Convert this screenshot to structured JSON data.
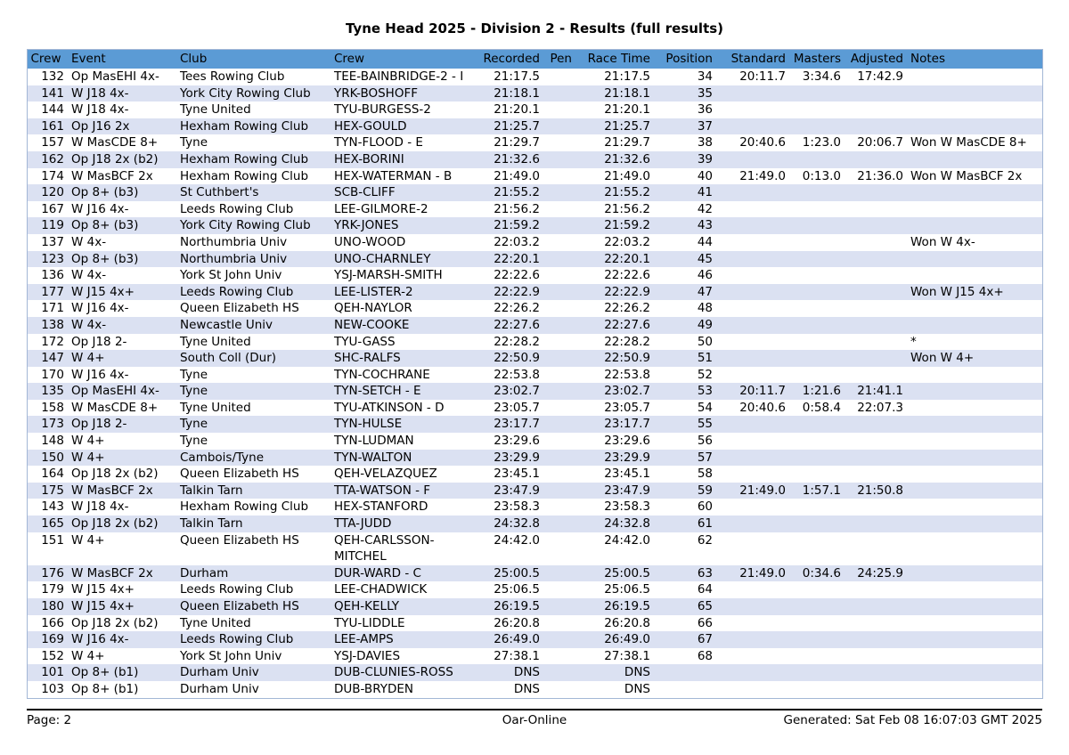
{
  "title": "Tyne Head 2025 - Division 2 - Results (full results)",
  "colors": {
    "header_bg": "#5b9bd5",
    "row_alt_bg": "#dbe1f2",
    "table_border": "#a3b7d6",
    "text": "#000000"
  },
  "table": {
    "columns": [
      {
        "key": "num",
        "label": "Crew"
      },
      {
        "key": "event",
        "label": "Event"
      },
      {
        "key": "club",
        "label": "Club"
      },
      {
        "key": "crew",
        "label": "Crew"
      },
      {
        "key": "recorded",
        "label": "Recorded"
      },
      {
        "key": "pen",
        "label": "Pen"
      },
      {
        "key": "race",
        "label": "Race Time"
      },
      {
        "key": "pos",
        "label": "Position"
      },
      {
        "key": "standard",
        "label": "Standard"
      },
      {
        "key": "masters",
        "label": "Masters"
      },
      {
        "key": "adjusted",
        "label": "Adjusted"
      },
      {
        "key": "notes",
        "label": "Notes"
      }
    ],
    "rows": [
      [
        "132",
        "Op MasEHI 4x-",
        "Tees Rowing Club",
        "TEE-BAINBRIDGE-2 - I",
        "21:17.5",
        "",
        "21:17.5",
        "34",
        "20:11.7",
        "3:34.6",
        "17:42.9",
        ""
      ],
      [
        "141",
        "W J18 4x-",
        "York City Rowing Club",
        "YRK-BOSHOFF",
        "21:18.1",
        "",
        "21:18.1",
        "35",
        "",
        "",
        "",
        ""
      ],
      [
        "144",
        "W J18 4x-",
        "Tyne United",
        "TYU-BURGESS-2",
        "21:20.1",
        "",
        "21:20.1",
        "36",
        "",
        "",
        "",
        ""
      ],
      [
        "161",
        "Op J16 2x",
        "Hexham Rowing Club",
        "HEX-GOULD",
        "21:25.7",
        "",
        "21:25.7",
        "37",
        "",
        "",
        "",
        ""
      ],
      [
        "157",
        "W MasCDE 8+",
        "Tyne",
        "TYN-FLOOD - E",
        "21:29.7",
        "",
        "21:29.7",
        "38",
        "20:40.6",
        "1:23.0",
        "20:06.7",
        "Won W MasCDE 8+"
      ],
      [
        "162",
        "Op J18 2x (b2)",
        "Hexham Rowing Club",
        "HEX-BORINI",
        "21:32.6",
        "",
        "21:32.6",
        "39",
        "",
        "",
        "",
        ""
      ],
      [
        "174",
        "W MasBCF 2x",
        "Hexham Rowing Club",
        "HEX-WATERMAN - B",
        "21:49.0",
        "",
        "21:49.0",
        "40",
        "21:49.0",
        "0:13.0",
        "21:36.0",
        "Won W MasBCF 2x"
      ],
      [
        "120",
        "Op 8+ (b3)",
        "St Cuthbert's",
        "SCB-CLIFF",
        "21:55.2",
        "",
        "21:55.2",
        "41",
        "",
        "",
        "",
        ""
      ],
      [
        "167",
        "W J16 4x-",
        "Leeds Rowing Club",
        "LEE-GILMORE-2",
        "21:56.2",
        "",
        "21:56.2",
        "42",
        "",
        "",
        "",
        ""
      ],
      [
        "119",
        "Op 8+ (b3)",
        "York City Rowing Club",
        "YRK-JONES",
        "21:59.2",
        "",
        "21:59.2",
        "43",
        "",
        "",
        "",
        ""
      ],
      [
        "137",
        "W 4x-",
        "Northumbria Univ",
        "UNO-WOOD",
        "22:03.2",
        "",
        "22:03.2",
        "44",
        "",
        "",
        "",
        "Won W 4x-"
      ],
      [
        "123",
        "Op 8+ (b3)",
        "Northumbria Univ",
        "UNO-CHARNLEY",
        "22:20.1",
        "",
        "22:20.1",
        "45",
        "",
        "",
        "",
        ""
      ],
      [
        "136",
        "W 4x-",
        "York St John Univ",
        "YSJ-MARSH-SMITH",
        "22:22.6",
        "",
        "22:22.6",
        "46",
        "",
        "",
        "",
        ""
      ],
      [
        "177",
        "W J15 4x+",
        "Leeds Rowing Club",
        "LEE-LISTER-2",
        "22:22.9",
        "",
        "22:22.9",
        "47",
        "",
        "",
        "",
        "Won W J15 4x+"
      ],
      [
        "171",
        "W J16 4x-",
        "Queen Elizabeth HS",
        "QEH-NAYLOR",
        "22:26.2",
        "",
        "22:26.2",
        "48",
        "",
        "",
        "",
        ""
      ],
      [
        "138",
        "W 4x-",
        "Newcastle Univ",
        "NEW-COOKE",
        "22:27.6",
        "",
        "22:27.6",
        "49",
        "",
        "",
        "",
        ""
      ],
      [
        "172",
        "Op J18 2-",
        "Tyne United",
        "TYU-GASS",
        "22:28.2",
        "",
        "22:28.2",
        "50",
        "",
        "",
        "",
        "*"
      ],
      [
        "147",
        "W 4+",
        "South Coll (Dur)",
        "SHC-RALFS",
        "22:50.9",
        "",
        "22:50.9",
        "51",
        "",
        "",
        "",
        "Won W 4+"
      ],
      [
        "170",
        "W J16 4x-",
        "Tyne",
        "TYN-COCHRANE",
        "22:53.8",
        "",
        "22:53.8",
        "52",
        "",
        "",
        "",
        ""
      ],
      [
        "135",
        "Op MasEHI 4x-",
        "Tyne",
        "TYN-SETCH - E",
        "23:02.7",
        "",
        "23:02.7",
        "53",
        "20:11.7",
        "1:21.6",
        "21:41.1",
        ""
      ],
      [
        "158",
        "W MasCDE 8+",
        "Tyne United",
        "TYU-ATKINSON - D",
        "23:05.7",
        "",
        "23:05.7",
        "54",
        "20:40.6",
        "0:58.4",
        "22:07.3",
        ""
      ],
      [
        "173",
        "Op J18 2-",
        "Tyne",
        "TYN-HULSE",
        "23:17.7",
        "",
        "23:17.7",
        "55",
        "",
        "",
        "",
        ""
      ],
      [
        "148",
        "W 4+",
        "Tyne",
        "TYN-LUDMAN",
        "23:29.6",
        "",
        "23:29.6",
        "56",
        "",
        "",
        "",
        ""
      ],
      [
        "150",
        "W 4+",
        "Cambois/Tyne",
        "TYN-WALTON",
        "23:29.9",
        "",
        "23:29.9",
        "57",
        "",
        "",
        "",
        ""
      ],
      [
        "164",
        "Op J18 2x (b2)",
        "Queen Elizabeth HS",
        "QEH-VELAZQUEZ",
        "23:45.1",
        "",
        "23:45.1",
        "58",
        "",
        "",
        "",
        ""
      ],
      [
        "175",
        "W MasBCF 2x",
        "Talkin Tarn",
        "TTA-WATSON - F",
        "23:47.9",
        "",
        "23:47.9",
        "59",
        "21:49.0",
        "1:57.1",
        "21:50.8",
        ""
      ],
      [
        "143",
        "W J18 4x-",
        "Hexham Rowing Club",
        "HEX-STANFORD",
        "23:58.3",
        "",
        "23:58.3",
        "60",
        "",
        "",
        "",
        ""
      ],
      [
        "165",
        "Op J18 2x (b2)",
        "Talkin Tarn",
        "TTA-JUDD",
        "24:32.8",
        "",
        "24:32.8",
        "61",
        "",
        "",
        "",
        ""
      ],
      [
        "151",
        "W 4+",
        "Queen Elizabeth HS",
        "QEH-CARLSSON-\nMITCHEL",
        "24:42.0",
        "",
        "24:42.0",
        "62",
        "",
        "",
        "",
        ""
      ],
      [
        "176",
        "W MasBCF 2x",
        "Durham",
        "DUR-WARD - C",
        "25:00.5",
        "",
        "25:00.5",
        "63",
        "21:49.0",
        "0:34.6",
        "24:25.9",
        ""
      ],
      [
        "179",
        "W J15 4x+",
        "Leeds Rowing Club",
        "LEE-CHADWICK",
        "25:06.5",
        "",
        "25:06.5",
        "64",
        "",
        "",
        "",
        ""
      ],
      [
        "180",
        "W J15 4x+",
        "Queen Elizabeth HS",
        "QEH-KELLY",
        "26:19.5",
        "",
        "26:19.5",
        "65",
        "",
        "",
        "",
        ""
      ],
      [
        "166",
        "Op J18 2x (b2)",
        "Tyne United",
        "TYU-LIDDLE",
        "26:20.8",
        "",
        "26:20.8",
        "66",
        "",
        "",
        "",
        ""
      ],
      [
        "169",
        "W J16 4x-",
        "Leeds Rowing Club",
        "LEE-AMPS",
        "26:49.0",
        "",
        "26:49.0",
        "67",
        "",
        "",
        "",
        ""
      ],
      [
        "152",
        "W 4+",
        "York St John Univ",
        "YSJ-DAVIES",
        "27:38.1",
        "",
        "27:38.1",
        "68",
        "",
        "",
        "",
        ""
      ],
      [
        "101",
        "Op 8+ (b1)",
        "Durham Univ",
        "DUB-CLUNIES-ROSS",
        "DNS",
        "",
        "DNS",
        "",
        "",
        "",
        "",
        ""
      ],
      [
        "103",
        "Op 8+ (b1)",
        "Durham Univ",
        "DUB-BRYDEN",
        "DNS",
        "",
        "DNS",
        "",
        "",
        "",
        "",
        ""
      ]
    ]
  },
  "footer": {
    "left": "Page: 2",
    "center": "Oar-Online",
    "right": "Generated: Sat Feb 08 16:07:03 GMT 2025"
  }
}
